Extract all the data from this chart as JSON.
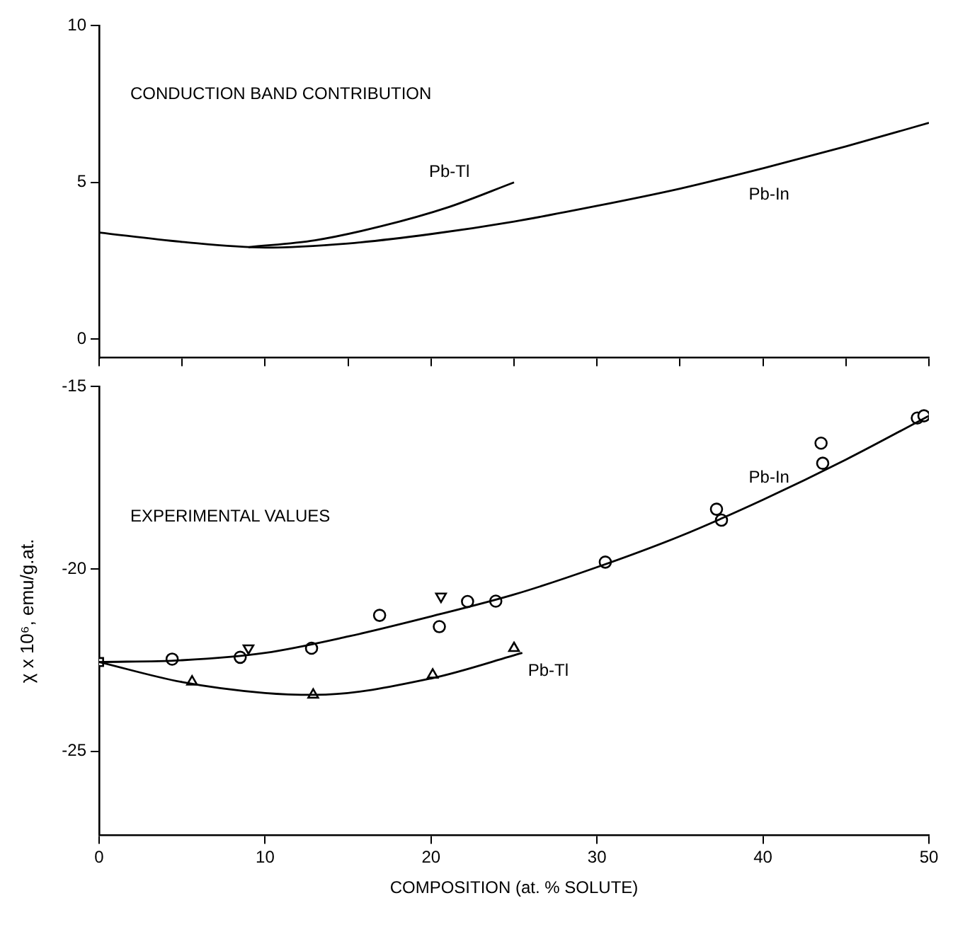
{
  "chart_data": [
    {
      "type": "line",
      "annotations": [
        "CONDUCTION BAND CONTRIBUTION"
      ],
      "xlim": [
        0,
        50
      ],
      "ylim": [
        -0.6,
        10
      ],
      "yticks": [
        0,
        5,
        10
      ],
      "tick_labels": "y",
      "grid": false,
      "legend": false,
      "marker": "none",
      "line_style": "solid",
      "series": [
        {
          "name": "Pb-Tl",
          "color": "#000000",
          "x": [
            9,
            13,
            17,
            21,
            25
          ],
          "values": [
            2.93,
            3.15,
            3.6,
            4.2,
            5.0
          ]
        },
        {
          "name": "Pb-In",
          "color": "#000000",
          "x": [
            0,
            5,
            10,
            15,
            20,
            25,
            30,
            35,
            40,
            45,
            50
          ],
          "values": [
            3.4,
            3.1,
            2.92,
            3.05,
            3.35,
            3.75,
            4.25,
            4.8,
            5.45,
            6.15,
            6.9
          ]
        }
      ]
    },
    {
      "type": "line",
      "xlabel": "COMPOSITION (at. % SOLUTE)",
      "ylabel": "χ x 10⁶, emu/g.at.",
      "annotations": [
        "EXPERIMENTAL VALUES"
      ],
      "xlim": [
        0,
        50
      ],
      "xticks": [
        0,
        10,
        20,
        30,
        40,
        50
      ],
      "ylim": [
        -27.3,
        -15
      ],
      "yticks": [
        -15,
        -20,
        -25
      ],
      "grid": false,
      "legend": false,
      "line_style": "solid",
      "series": [
        {
          "name": "Pb-In",
          "color": "#000000",
          "marker": "none",
          "x": [
            0,
            5,
            10,
            15,
            20,
            25,
            30,
            35,
            40,
            45,
            50
          ],
          "values": [
            -22.55,
            -22.5,
            -22.3,
            -21.85,
            -21.3,
            -20.7,
            -19.95,
            -19.1,
            -18.1,
            -17.0,
            -15.8
          ]
        },
        {
          "name": "Pb-Tl",
          "color": "#000000",
          "marker": "none",
          "x": [
            0,
            5,
            10,
            13,
            20,
            25.5
          ],
          "values": [
            -22.55,
            -23.1,
            -23.4,
            -23.45,
            -23.0,
            -22.3
          ]
        },
        {
          "type": "scatter",
          "color": "#000000",
          "marker": "circle",
          "x": [
            4.4,
            8.5,
            12.8,
            16.9,
            20.5,
            22.2,
            23.9,
            30.5,
            37.2,
            37.5,
            43.5,
            43.6,
            49.3,
            49.7
          ],
          "values": [
            -22.47,
            -22.42,
            -22.17,
            -21.27,
            -21.58,
            -20.89,
            -20.88,
            -19.81,
            -18.36,
            -18.66,
            -16.55,
            -17.1,
            -15.86,
            -15.8
          ]
        },
        {
          "type": "scatter",
          "color": "#000000",
          "marker": "triangle-down",
          "x": [
            9.0,
            20.6
          ],
          "values": [
            -22.17,
            -20.75
          ]
        },
        {
          "type": "scatter",
          "color": "#000000",
          "marker": "triangle",
          "x": [
            5.6,
            12.9,
            20.1,
            25.0
          ],
          "values": [
            -23.09,
            -23.45,
            -22.9,
            -22.17
          ]
        },
        {
          "type": "scatter",
          "color": "#000000",
          "marker": "square",
          "x": [
            0
          ],
          "values": [
            -22.55
          ]
        }
      ]
    }
  ]
}
